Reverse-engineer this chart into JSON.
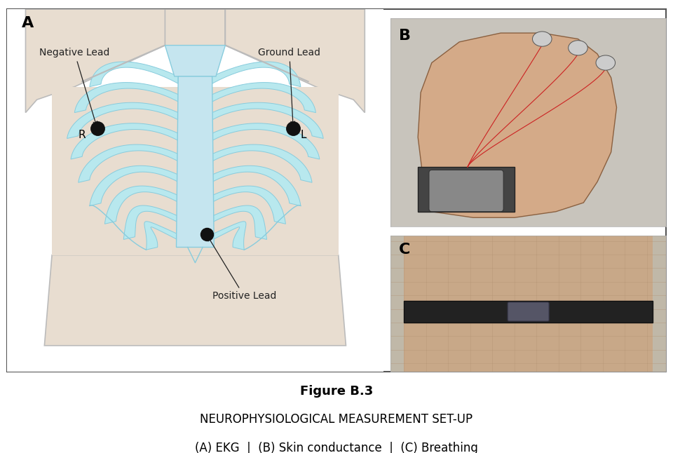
{
  "title_bold": "Figure B.3",
  "title_normal": "NEUROPHYSIOLOGICAL MEASUREMENT SET-UP",
  "subtitle": "(A) EKG  |  (B) Skin conductance  |  (C) Breathing",
  "panel_A_label": "A",
  "panel_B_label": "B",
  "panel_C_label": "C",
  "label_neg": "Negative Lead",
  "label_ground": "Ground Lead",
  "label_pos": "Positive Lead",
  "label_R": "R",
  "label_L": "L",
  "bg_color": "#ffffff",
  "border_color": "#555555",
  "body_outline_color": "#bbbbbb",
  "rib_fill_color": "#b8e8ee",
  "rib_stroke_color": "#88ccdd",
  "electrode_color": "#111111",
  "annotation_color": "#222222",
  "title_fontsize": 13,
  "subtitle_fontsize": 12,
  "panel_label_fontsize": 16,
  "annotation_fontsize": 10
}
